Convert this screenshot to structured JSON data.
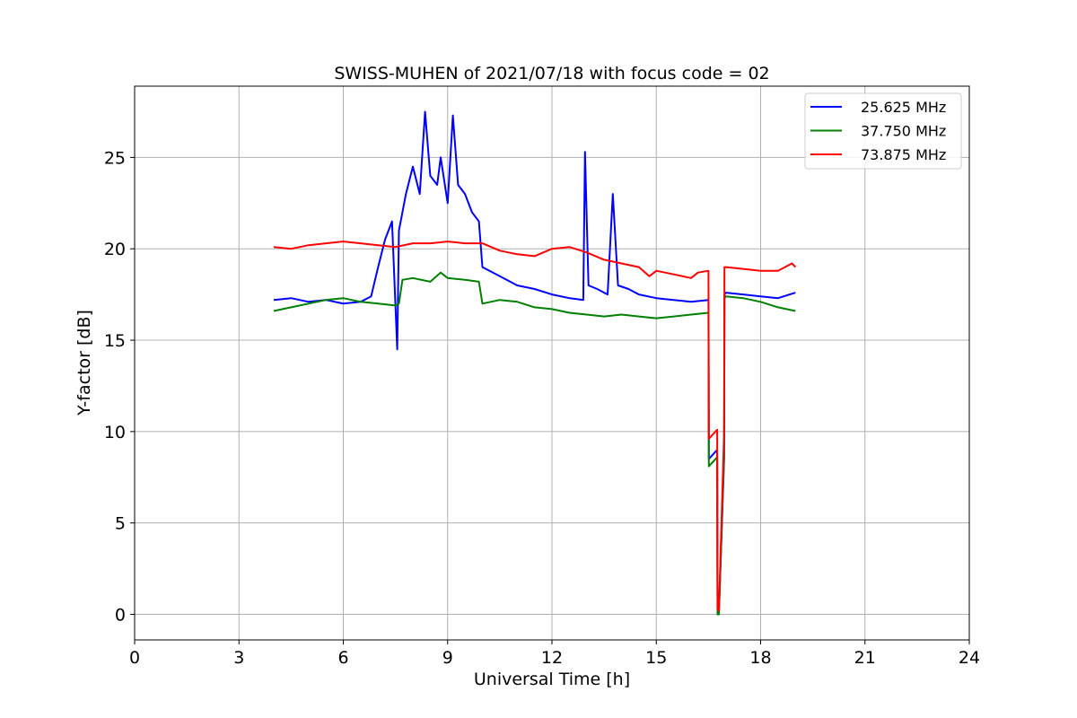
{
  "chart_data": {
    "type": "line",
    "title": "SWISS-MUHEN of 2021/07/18 with focus code = 02",
    "xlabel": "Universal Time [h]",
    "ylabel": "Y-factor [dB]",
    "xlim": [
      0,
      24
    ],
    "ylim": [
      -1.4,
      28.9
    ],
    "x_ticks": [
      0,
      3,
      6,
      9,
      12,
      15,
      18,
      21,
      24
    ],
    "y_ticks": [
      0,
      5,
      10,
      15,
      20,
      25
    ],
    "grid": true,
    "legend_position": "top-right",
    "series": [
      {
        "name": "25.625 MHz",
        "color": "#0000ff",
        "x": [
          4.0,
          4.5,
          5.0,
          5.5,
          6.0,
          6.5,
          6.8,
          7.0,
          7.2,
          7.4,
          7.55,
          7.6,
          7.8,
          8.0,
          8.2,
          8.35,
          8.5,
          8.7,
          8.8,
          9.0,
          9.15,
          9.3,
          9.5,
          9.7,
          9.9,
          10.0,
          10.5,
          11.0,
          11.5,
          12.0,
          12.5,
          12.9,
          12.95,
          13.05,
          13.3,
          13.6,
          13.75,
          13.9,
          14.2,
          14.5,
          15.0,
          15.5,
          16.0,
          16.5,
          16.51,
          16.75,
          16.76,
          16.8,
          16.95,
          16.96,
          17.0,
          17.5,
          18.0,
          18.5,
          19.0
        ],
        "y": [
          17.2,
          17.3,
          17.1,
          17.2,
          17.0,
          17.1,
          17.4,
          19.0,
          20.5,
          21.5,
          14.5,
          21.0,
          23.0,
          24.5,
          23.0,
          27.5,
          24.0,
          23.5,
          25.0,
          22.5,
          27.3,
          23.5,
          23.0,
          22.0,
          21.5,
          19.0,
          18.5,
          18.0,
          17.8,
          17.5,
          17.3,
          17.2,
          25.3,
          18.0,
          17.8,
          17.5,
          23.0,
          18.0,
          17.8,
          17.5,
          17.3,
          17.2,
          17.1,
          17.2,
          8.5,
          9.0,
          0.0,
          0.0,
          8.5,
          17.5,
          17.6,
          17.5,
          17.4,
          17.3,
          17.6
        ]
      },
      {
        "name": "37.750 MHz",
        "color": "#008000",
        "x": [
          4.0,
          4.5,
          5.0,
          5.5,
          6.0,
          6.5,
          7.0,
          7.5,
          7.6,
          7.7,
          8.0,
          8.5,
          8.8,
          9.0,
          9.5,
          9.9,
          10.0,
          10.5,
          11.0,
          11.5,
          12.0,
          12.5,
          13.0,
          13.5,
          14.0,
          14.5,
          15.0,
          15.5,
          16.0,
          16.5,
          16.51,
          16.75,
          16.76,
          16.8,
          16.95,
          16.96,
          17.0,
          17.5,
          18.0,
          18.5,
          19.0
        ],
        "y": [
          16.6,
          16.8,
          17.0,
          17.2,
          17.3,
          17.1,
          17.0,
          16.9,
          17.0,
          18.3,
          18.4,
          18.2,
          18.7,
          18.4,
          18.3,
          18.2,
          17.0,
          17.2,
          17.1,
          16.8,
          16.7,
          16.5,
          16.4,
          16.3,
          16.4,
          16.3,
          16.2,
          16.3,
          16.4,
          16.5,
          8.1,
          8.6,
          0.0,
          0.0,
          8.8,
          17.3,
          17.4,
          17.3,
          17.1,
          16.8,
          16.6
        ]
      },
      {
        "name": "73.875 MHz",
        "color": "#ff0000",
        "x": [
          4.0,
          4.5,
          5.0,
          5.5,
          6.0,
          6.5,
          7.0,
          7.5,
          8.0,
          8.5,
          9.0,
          9.5,
          10.0,
          10.5,
          11.0,
          11.5,
          12.0,
          12.5,
          13.0,
          13.5,
          14.0,
          14.5,
          14.8,
          15.0,
          15.5,
          16.0,
          16.2,
          16.5,
          16.51,
          16.75,
          16.76,
          16.8,
          16.95,
          16.96,
          17.0,
          17.5,
          18.0,
          18.5,
          18.9,
          19.0
        ],
        "y": [
          20.1,
          20.0,
          20.2,
          20.3,
          20.4,
          20.3,
          20.2,
          20.1,
          20.3,
          20.3,
          20.4,
          20.3,
          20.3,
          19.9,
          19.7,
          19.6,
          20.0,
          20.1,
          19.8,
          19.4,
          19.2,
          19.0,
          18.5,
          18.8,
          18.6,
          18.4,
          18.7,
          18.8,
          9.6,
          10.1,
          0.3,
          0.2,
          9.9,
          19.0,
          19.0,
          18.9,
          18.8,
          18.8,
          19.2,
          19.0
        ]
      }
    ]
  }
}
